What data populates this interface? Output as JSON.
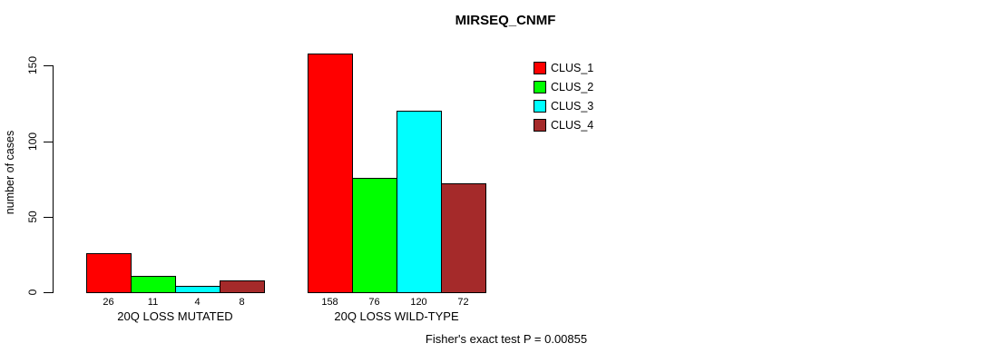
{
  "chart_data": {
    "type": "bar",
    "title": "MIRSEQ_CNMF",
    "ylabel": "number of cases",
    "xlabel": "",
    "categories": [
      "20Q LOSS MUTATED",
      "20Q LOSS WILD-TYPE"
    ],
    "series": [
      {
        "name": "CLUS_1",
        "color": "#FF0000",
        "values": [
          26,
          158
        ]
      },
      {
        "name": "CLUS_2",
        "color": "#00FF00",
        "values": [
          11,
          76
        ]
      },
      {
        "name": "CLUS_3",
        "color": "#00FFFF",
        "values": [
          4,
          120
        ]
      },
      {
        "name": "CLUS_4",
        "color": "#A52A2A",
        "values": [
          8,
          72
        ]
      }
    ],
    "bar_value_labels": [
      [
        26,
        11,
        4,
        8
      ],
      [
        158,
        76,
        120,
        72
      ]
    ],
    "yticks": [
      0,
      50,
      100,
      150
    ],
    "ylim": [
      0,
      158
    ],
    "grid": false,
    "legend_position": "top-right",
    "legend_entries": [
      "CLUS_1",
      "CLUS_2",
      "CLUS_3",
      "CLUS_4"
    ],
    "annotation": "Fisher's exact test P = 0.00855"
  },
  "colors": {
    "background": "#ffffff",
    "axis": "#000000",
    "text": "#000000",
    "clus_1": "#FF0000",
    "clus_2": "#00FF00",
    "clus_3": "#00FFFF",
    "clus_4": "#A52A2A"
  }
}
